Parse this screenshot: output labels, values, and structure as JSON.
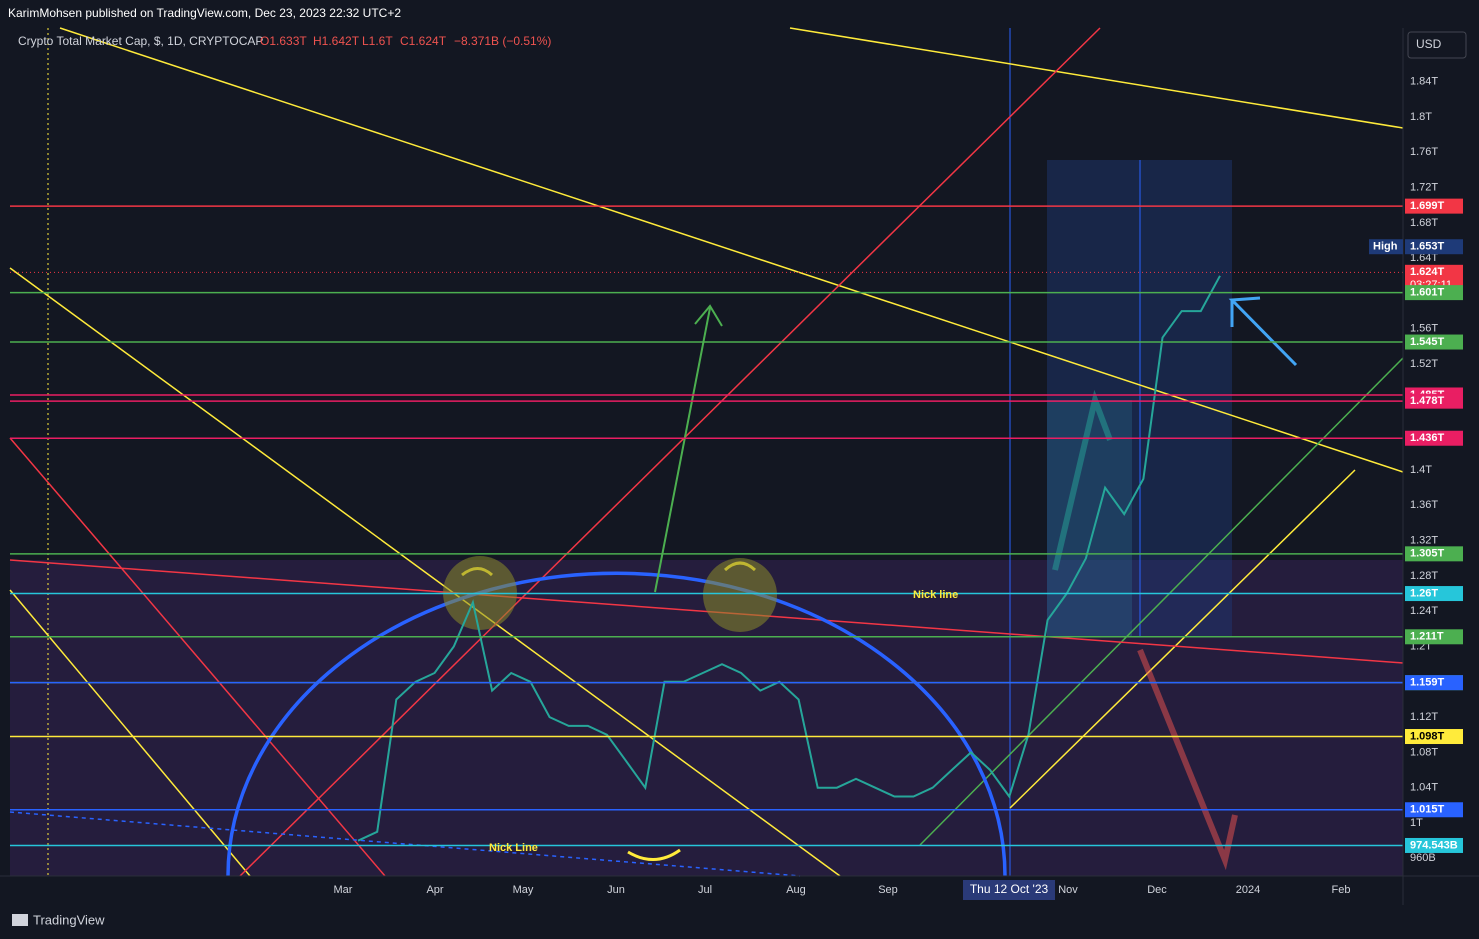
{
  "header": {
    "publisher": "KarimMohsen published on TradingView.com, Dec 23, 2023 22:32 UTC+2"
  },
  "legend": {
    "symbol": "Crypto Total Market Cap, $, 1D, CRYPTOCAP",
    "open": "O1.633T",
    "high": "H1.642T",
    "low": "L1.6T",
    "close": "C1.624T",
    "change": "−8.371B (−0.51%)"
  },
  "currency": "USD",
  "price_axis": {
    "ticks": [
      {
        "value": 1.84,
        "label": "1.84T"
      },
      {
        "value": 1.8,
        "label": "1.8T"
      },
      {
        "value": 1.76,
        "label": "1.76T"
      },
      {
        "value": 1.72,
        "label": "1.72T"
      },
      {
        "value": 1.68,
        "label": "1.68T"
      },
      {
        "value": 1.64,
        "label": "1.64T"
      },
      {
        "value": 1.56,
        "label": "1.56T"
      },
      {
        "value": 1.52,
        "label": "1.52T"
      },
      {
        "value": 1.4,
        "label": "1.4T"
      },
      {
        "value": 1.36,
        "label": "1.36T"
      },
      {
        "value": 1.32,
        "label": "1.32T"
      },
      {
        "value": 1.28,
        "label": "1.28T"
      },
      {
        "value": 1.24,
        "label": "1.24T"
      },
      {
        "value": 1.2,
        "label": "1.2T"
      },
      {
        "value": 1.12,
        "label": "1.12T"
      },
      {
        "value": 1.08,
        "label": "1.08T"
      },
      {
        "value": 1.04,
        "label": "1.04T"
      },
      {
        "value": 1,
        "label": "1T"
      },
      {
        "value": 0.96,
        "label": "960B"
      }
    ]
  },
  "levels": [
    {
      "value": 1.699,
      "label": "1.699T",
      "color": "#f23645"
    },
    {
      "value": 1.653,
      "label": "1.653T",
      "color": "#1e3a78",
      "tag": "High"
    },
    {
      "value": 1.624,
      "label": "1.624T",
      "color": "#f23645",
      "countdown": "03:27:11"
    },
    {
      "value": 1.601,
      "label": "1.601T",
      "color": "#4caf50"
    },
    {
      "value": 1.545,
      "label": "1.545T",
      "color": "#4caf50"
    },
    {
      "value": 1.485,
      "label": "1.485T",
      "color": "#e91e63"
    },
    {
      "value": 1.478,
      "label": "1.478T",
      "color": "#e91e63"
    },
    {
      "value": 1.436,
      "label": "1.436T",
      "color": "#e91e63"
    },
    {
      "value": 1.305,
      "label": "1.305T",
      "color": "#4caf50"
    },
    {
      "value": 1.26,
      "label": "1.26T",
      "color": "#26c6da"
    },
    {
      "value": 1.211,
      "label": "1.211T",
      "color": "#4caf50"
    },
    {
      "value": 1.159,
      "label": "1.159T",
      "color": "#4caf50"
    },
    {
      "value": 1.159,
      "label": "1.159T",
      "color": "#2962ff"
    },
    {
      "value": 1.098,
      "label": "1.098T",
      "color": "#ffeb3b"
    },
    {
      "value": 1.015,
      "label": "1.015T",
      "color": "#2962ff"
    },
    {
      "value": 0.974543,
      "label": "974.543B",
      "color": "#26c6da"
    }
  ],
  "time_axis": [
    "Mar",
    "Apr",
    "May",
    "Jun",
    "Jul",
    "Aug",
    "Sep",
    "Nov",
    "Dec",
    "2024",
    "Feb"
  ],
  "crosshair_date": "Thu 12 Oct '23",
  "weekly_close": [
    0.98,
    0.99,
    1.14,
    1.16,
    1.17,
    1.2,
    1.25,
    1.15,
    1.17,
    1.16,
    1.12,
    1.11,
    1.11,
    1.1,
    1.07,
    1.04,
    1.16,
    1.16,
    1.17,
    1.18,
    1.17,
    1.15,
    1.16,
    1.14,
    1.04,
    1.04,
    1.05,
    1.04,
    1.03,
    1.03,
    1.04,
    1.06,
    1.08,
    1.06,
    1.03,
    1.1,
    1.23,
    1.26,
    1.3,
    1.38,
    1.35,
    1.39,
    1.55,
    1.58,
    1.58,
    1.62
  ],
  "annotations": {
    "nick_line_upper": "Nick line",
    "nick_line_lower": "Nick Line"
  },
  "footer": {
    "brand": "TradingView"
  }
}
